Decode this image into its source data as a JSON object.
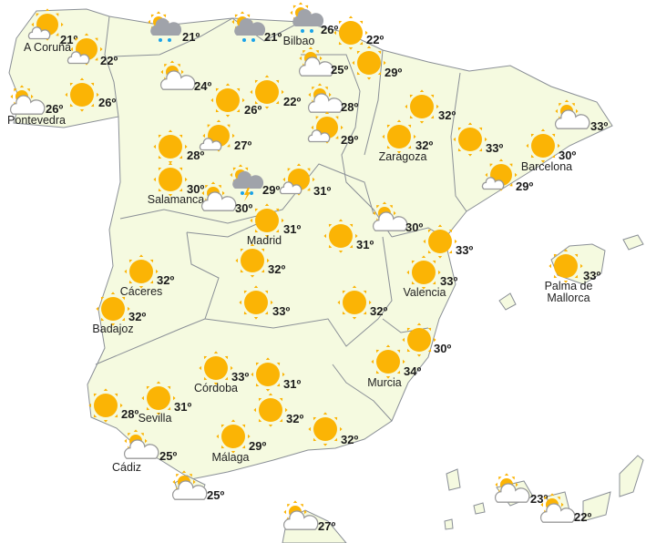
{
  "map": {
    "colors": {
      "land": "#f5fae0",
      "border": "#8a8f96",
      "sun": "#fbb405",
      "cloud": "#ffffff",
      "rain_cloud": "#a0a3aa",
      "rain_drop": "#1aa3e8"
    },
    "degree_symbol": "º",
    "points": [
      {
        "city": "A Coruña",
        "temp": "21",
        "icon": "sun-cloud"
      },
      {
        "city": "",
        "temp": "22",
        "icon": "sun-cloud"
      },
      {
        "city": "Pontevedra",
        "temp": "26",
        "icon": "cloud-sun"
      },
      {
        "city": "",
        "temp": "26",
        "icon": "sun"
      },
      {
        "city": "",
        "temp": "21",
        "icon": "rain"
      },
      {
        "city": "",
        "temp": "21",
        "icon": "rain"
      },
      {
        "city": "Bilbao",
        "temp": "26",
        "icon": "rain"
      },
      {
        "city": "",
        "temp": "22",
        "icon": "sun"
      },
      {
        "city": "",
        "temp": "24",
        "icon": "cloud-sun"
      },
      {
        "city": "",
        "temp": "26",
        "icon": "sun"
      },
      {
        "city": "",
        "temp": "22",
        "icon": "sun"
      },
      {
        "city": "",
        "temp": "25",
        "icon": "cloud-sun"
      },
      {
        "city": "",
        "temp": "29",
        "icon": "sun"
      },
      {
        "city": "",
        "temp": "28",
        "icon": "cloud-sun"
      },
      {
        "city": "",
        "temp": "29",
        "icon": "sun-cloud"
      },
      {
        "city": "",
        "temp": "28",
        "icon": "sun"
      },
      {
        "city": "",
        "temp": "27",
        "icon": "sun-cloud"
      },
      {
        "city": "Zaragoza",
        "temp": "32",
        "icon": "sun"
      },
      {
        "city": "",
        "temp": "32",
        "icon": "sun"
      },
      {
        "city": "",
        "temp": "33",
        "icon": "sun"
      },
      {
        "city": "Barcelona",
        "temp": "30",
        "icon": "sun"
      },
      {
        "city": "",
        "temp": "33",
        "icon": "cloud-sun"
      },
      {
        "city": "",
        "temp": "29",
        "icon": "sun-cloud"
      },
      {
        "city": "Salamanca",
        "temp": "30",
        "icon": "sun"
      },
      {
        "city": "",
        "temp": "30",
        "icon": "cloud-sun"
      },
      {
        "city": "",
        "temp": "29",
        "icon": "storm"
      },
      {
        "city": "",
        "temp": "31",
        "icon": "sun-cloud"
      },
      {
        "city": "Madrid",
        "temp": "31",
        "icon": "sun"
      },
      {
        "city": "",
        "temp": "31",
        "icon": "sun"
      },
      {
        "city": "",
        "temp": "30",
        "icon": "cloud-sun"
      },
      {
        "city": "",
        "temp": "33",
        "icon": "sun"
      },
      {
        "city": "Valencia",
        "temp": "33",
        "icon": "sun"
      },
      {
        "city": "Palma de Mallorca",
        "temp": "33",
        "icon": "sun"
      },
      {
        "city": "Cáceres",
        "temp": "32",
        "icon": "sun"
      },
      {
        "city": "Badajoz",
        "temp": "32",
        "icon": "sun"
      },
      {
        "city": "",
        "temp": "32",
        "icon": "sun"
      },
      {
        "city": "",
        "temp": "33",
        "icon": "sun"
      },
      {
        "city": "",
        "temp": "32",
        "icon": "sun"
      },
      {
        "city": "",
        "temp": "30",
        "icon": "sun"
      },
      {
        "city": "Murcia",
        "temp": "34",
        "icon": "sun"
      },
      {
        "city": "Córdoba",
        "temp": "33",
        "icon": "sun"
      },
      {
        "city": "",
        "temp": "31",
        "icon": "sun"
      },
      {
        "city": "",
        "temp": "28",
        "icon": "sun"
      },
      {
        "city": "Sevilla",
        "temp": "31",
        "icon": "sun"
      },
      {
        "city": "",
        "temp": "32",
        "icon": "sun"
      },
      {
        "city": "Málaga",
        "temp": "29",
        "icon": "sun"
      },
      {
        "city": "",
        "temp": "32",
        "icon": "sun"
      },
      {
        "city": "Cádiz",
        "temp": "25",
        "icon": "cloud-sun"
      },
      {
        "city": "",
        "temp": "25",
        "icon": "cloud-sun"
      },
      {
        "city": "",
        "temp": "27",
        "icon": "cloud-sun"
      },
      {
        "city": "",
        "temp": "23",
        "icon": "cloud-sun"
      },
      {
        "city": "",
        "temp": "22",
        "icon": "cloud-sun"
      }
    ]
  }
}
